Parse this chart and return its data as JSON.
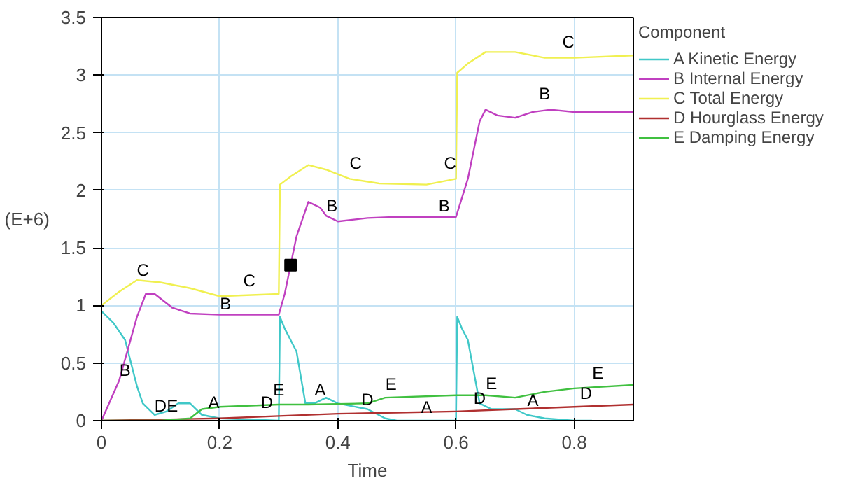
{
  "chart_data": {
    "type": "line",
    "xlabel": "Time",
    "ylabel": "(E+6)",
    "legend_title": "Component",
    "xlim": [
      0,
      0.9
    ],
    "ylim": [
      0,
      3.5
    ],
    "xticks": [
      0,
      0.2,
      0.4,
      0.6,
      0.8
    ],
    "yticks": [
      0,
      0.5,
      1,
      1.5,
      2,
      2.5,
      3,
      3.5
    ],
    "grid": true,
    "legend": "right",
    "marker": "none",
    "line_style": "solid",
    "series": [
      {
        "name": "A Kinetic Energy",
        "color": "#40c8c8",
        "x": [
          0,
          0.02,
          0.04,
          0.05,
          0.06,
          0.07,
          0.09,
          0.11,
          0.13,
          0.15,
          0.17,
          0.2,
          0.3,
          0.302,
          0.31,
          0.33,
          0.345,
          0.36,
          0.38,
          0.4,
          0.45,
          0.48,
          0.5,
          0.6,
          0.602,
          0.61,
          0.62,
          0.64,
          0.66,
          0.7,
          0.72,
          0.75,
          0.8,
          0.83
        ],
        "values": [
          0.95,
          0.85,
          0.7,
          0.5,
          0.3,
          0.15,
          0.05,
          0.08,
          0.15,
          0.15,
          0.05,
          0.02,
          0,
          0.9,
          0.8,
          0.6,
          0.15,
          0.15,
          0.2,
          0.15,
          0.1,
          0.02,
          0,
          0,
          0.9,
          0.8,
          0.7,
          0.15,
          0.1,
          0.1,
          0.05,
          0.02,
          0,
          0
        ]
      },
      {
        "name": "B Internal Energy",
        "color": "#c040c0",
        "x": [
          0,
          0.03,
          0.06,
          0.075,
          0.09,
          0.12,
          0.15,
          0.2,
          0.3,
          0.31,
          0.32,
          0.33,
          0.35,
          0.37,
          0.38,
          0.4,
          0.45,
          0.5,
          0.6,
          0.62,
          0.64,
          0.65,
          0.67,
          0.7,
          0.73,
          0.76,
          0.8,
          0.9
        ],
        "values": [
          0,
          0.35,
          0.9,
          1.1,
          1.1,
          0.98,
          0.93,
          0.92,
          0.92,
          1.1,
          1.35,
          1.6,
          1.9,
          1.85,
          1.78,
          1.73,
          1.76,
          1.77,
          1.77,
          2.1,
          2.6,
          2.7,
          2.65,
          2.63,
          2.68,
          2.7,
          2.68,
          2.68
        ]
      },
      {
        "name": "C Total Energy",
        "color": "#f0f050",
        "x": [
          0,
          0.03,
          0.06,
          0.1,
          0.15,
          0.2,
          0.3,
          0.302,
          0.32,
          0.35,
          0.38,
          0.42,
          0.47,
          0.55,
          0.6,
          0.602,
          0.62,
          0.65,
          0.7,
          0.75,
          0.8,
          0.9
        ],
        "values": [
          1.0,
          1.12,
          1.22,
          1.2,
          1.15,
          1.08,
          1.1,
          2.05,
          2.12,
          2.22,
          2.18,
          2.1,
          2.06,
          2.05,
          2.1,
          3.02,
          3.1,
          3.2,
          3.2,
          3.15,
          3.15,
          3.17
        ]
      },
      {
        "name": "D Hourglass Energy",
        "color": "#b03030",
        "x": [
          0,
          0.1,
          0.2,
          0.3,
          0.4,
          0.5,
          0.6,
          0.7,
          0.8,
          0.9
        ],
        "values": [
          0,
          0.01,
          0.02,
          0.04,
          0.06,
          0.07,
          0.08,
          0.1,
          0.12,
          0.14
        ]
      },
      {
        "name": "E Damping Energy",
        "color": "#40c040",
        "x": [
          0,
          0.1,
          0.15,
          0.17,
          0.2,
          0.3,
          0.35,
          0.45,
          0.48,
          0.6,
          0.65,
          0.7,
          0.75,
          0.8,
          0.9
        ],
        "values": [
          0,
          0,
          0.02,
          0.1,
          0.12,
          0.14,
          0.14,
          0.15,
          0.2,
          0.22,
          0.22,
          0.2,
          0.25,
          0.28,
          0.31
        ]
      },
      {
        "type": "scatter",
        "marker": "square",
        "color": "#000000",
        "x": [
          0.32
        ],
        "values": [
          1.35
        ]
      }
    ],
    "annotations": [
      {
        "text": "A",
        "x": 0.19,
        "y": 0.07
      },
      {
        "text": "A",
        "x": 0.37,
        "y": 0.18
      },
      {
        "text": "A",
        "x": 0.55,
        "y": 0.03
      },
      {
        "text": "A",
        "x": 0.73,
        "y": 0.09
      },
      {
        "text": "B",
        "x": 0.04,
        "y": 0.35
      },
      {
        "text": "B",
        "x": 0.21,
        "y": 0.93
      },
      {
        "text": "B",
        "x": 0.39,
        "y": 1.78
      },
      {
        "text": "B",
        "x": 0.58,
        "y": 1.78
      },
      {
        "text": "B",
        "x": 0.75,
        "y": 2.75
      },
      {
        "text": "C",
        "x": 0.07,
        "y": 1.22
      },
      {
        "text": "C",
        "x": 0.25,
        "y": 1.13
      },
      {
        "text": "C",
        "x": 0.43,
        "y": 2.15
      },
      {
        "text": "C",
        "x": 0.59,
        "y": 2.15
      },
      {
        "text": "C",
        "x": 0.79,
        "y": 3.2
      },
      {
        "text": "D",
        "x": 0.1,
        "y": 0.04
      },
      {
        "text": "D",
        "x": 0.28,
        "y": 0.07
      },
      {
        "text": "D",
        "x": 0.45,
        "y": 0.1
      },
      {
        "text": "D",
        "x": 0.64,
        "y": 0.11
      },
      {
        "text": "D",
        "x": 0.82,
        "y": 0.15
      },
      {
        "text": "E",
        "x": 0.12,
        "y": 0.04
      },
      {
        "text": "E",
        "x": 0.3,
        "y": 0.18
      },
      {
        "text": "E",
        "x": 0.49,
        "y": 0.23
      },
      {
        "text": "E",
        "x": 0.66,
        "y": 0.24
      },
      {
        "text": "E",
        "x": 0.84,
        "y": 0.33
      }
    ]
  }
}
